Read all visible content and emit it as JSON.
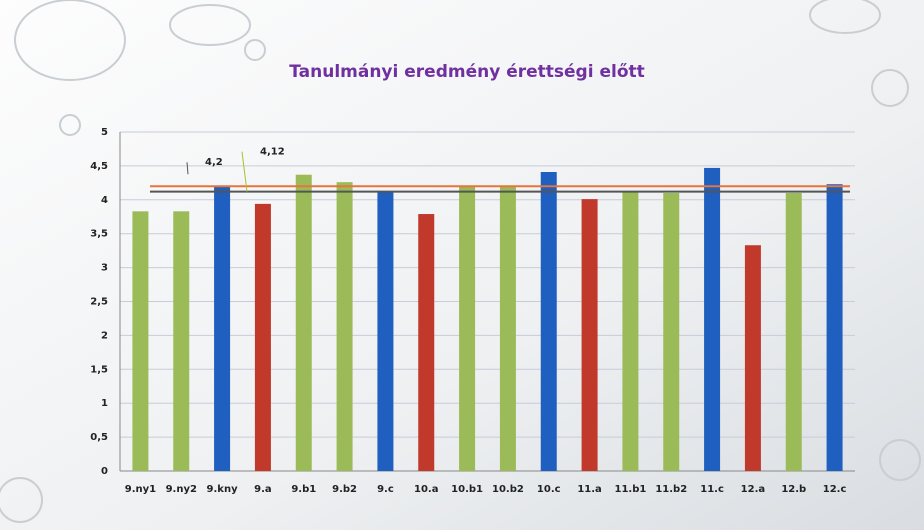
{
  "chart_data": {
    "type": "bar",
    "title": "Tanulmányi eredmény érettségi előtt",
    "categories": [
      "9.ny1",
      "9.ny2",
      "9.kny",
      "9.a",
      "9.b1",
      "9.b2",
      "9.c",
      "10.a",
      "10.b1",
      "10.b2",
      "10.c",
      "11.a",
      "11.b1",
      "11.b2",
      "11.c",
      "12.a",
      "12.b",
      "12.c"
    ],
    "values": [
      3.83,
      3.83,
      4.19,
      3.94,
      4.37,
      4.26,
      4.13,
      3.79,
      4.19,
      4.19,
      4.41,
      4.01,
      4.12,
      4.1,
      4.47,
      3.33,
      4.1,
      4.23
    ],
    "colors": [
      "#9bbb59",
      "#9bbb59",
      "#1f5fbf",
      "#c0392b",
      "#9bbb59",
      "#9bbb59",
      "#1f5fbf",
      "#c0392b",
      "#9bbb59",
      "#9bbb59",
      "#1f5fbf",
      "#c0392b",
      "#9bbb59",
      "#9bbb59",
      "#1f5fbf",
      "#c0392b",
      "#9bbb59",
      "#1f5fbf"
    ],
    "ylim": [
      0,
      5
    ],
    "yticks": [
      0,
      {
        "value": 0.5,
        "label": "0,5"
      },
      1,
      {
        "value": 1.5,
        "label": "1,5"
      },
      2,
      {
        "value": 2.5,
        "label": "2,5"
      },
      3,
      {
        "value": 3.5,
        "label": "3,5"
      },
      4,
      {
        "value": 4.5,
        "label": "4,5"
      },
      5
    ],
    "grid": true,
    "reference_lines": [
      {
        "value": 4.2,
        "label": "4,2",
        "color": "#e8743b"
      },
      {
        "value": 4.12,
        "label": "4,12",
        "color": "#555555"
      }
    ]
  }
}
